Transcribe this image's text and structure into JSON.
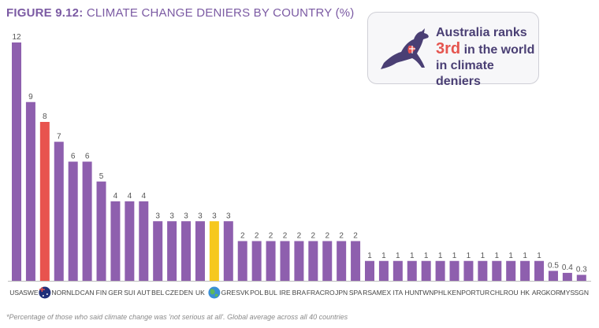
{
  "figure": {
    "number": "FIGURE 9.12:",
    "title": "CLIMATE CHANGE DENIERS BY COUNTRY (%)"
  },
  "callout": {
    "line1": "Australia ranks",
    "rank": "3rd",
    "line2_suffix": " in the world",
    "line3": "in climate deniers"
  },
  "footnote": "*Percentage of those who said climate change was 'not serious at all'. Global average across all 40 countries",
  "colors": {
    "bar": "#8e5fae",
    "australia": "#e8534e",
    "global": "#f6c81e",
    "title": "#7b5aa3"
  },
  "chart_data": {
    "type": "bar",
    "title": "CLIMATE CHANGE DENIERS BY COUNTRY (%)",
    "categories": [
      "USA",
      "SWE",
      "AUS",
      "NOR",
      "NLD",
      "CAN",
      "FIN",
      "GER",
      "SUI",
      "AUT",
      "BEL",
      "CZE",
      "DEN",
      "UK",
      "GLOBAL",
      "GRE",
      "SVK",
      "POL",
      "BUL",
      "IRE",
      "BRA",
      "FRA",
      "CRO",
      "JPN",
      "SPA",
      "RSA",
      "MEX",
      "ITA",
      "HUN",
      "TWN",
      "PHL",
      "KEN",
      "POR",
      "TUR",
      "CHL",
      "ROU",
      "HK",
      "ARG",
      "KOR",
      "MYS",
      "SGN"
    ],
    "tick_labels": [
      "USA",
      "SWE",
      "",
      "NOR",
      "NLD",
      "CAN",
      "FIN",
      "GER",
      "SUI",
      "AUT",
      "BEL",
      "CZE",
      "DEN",
      "UK",
      "",
      "GRE",
      "SVK",
      "POL",
      "BUL",
      "IRE",
      "BRA",
      "FRA",
      "CRO",
      "JPN",
      "SPA",
      "RSA",
      "MEX",
      "ITA",
      "HUN",
      "TWN",
      "PHL",
      "KEN",
      "POR",
      "TUR",
      "CHL",
      "ROU",
      "HK",
      "ARG",
      "KOR",
      "MYS",
      "SGN"
    ],
    "values": [
      12,
      9,
      8,
      7,
      6,
      6,
      5,
      4,
      4,
      4,
      3,
      3,
      3,
      3,
      3,
      3,
      2,
      2,
      2,
      2,
      2,
      2,
      2,
      2,
      2,
      1,
      1,
      1,
      1,
      1,
      1,
      1,
      1,
      1,
      1,
      1,
      1,
      1,
      0.5,
      0.4,
      0.3
    ],
    "value_labels": [
      "12",
      "9",
      "8",
      "7",
      "6",
      "6",
      "5",
      "4",
      "4",
      "4",
      "3",
      "3",
      "3",
      "3",
      "3",
      "3",
      "2",
      "2",
      "2",
      "2",
      "2",
      "2",
      "2",
      "2",
      "2",
      "1",
      "1",
      "1",
      "1",
      "1",
      "1",
      "1",
      "1",
      "1",
      "1",
      "1",
      "1",
      "1",
      "0.5",
      "0.4",
      "0.3"
    ],
    "highlight": {
      "AUS": "australia",
      "GLOBAL": "global"
    },
    "ylim": [
      0,
      12
    ],
    "grid": false,
    "legend": "none"
  }
}
